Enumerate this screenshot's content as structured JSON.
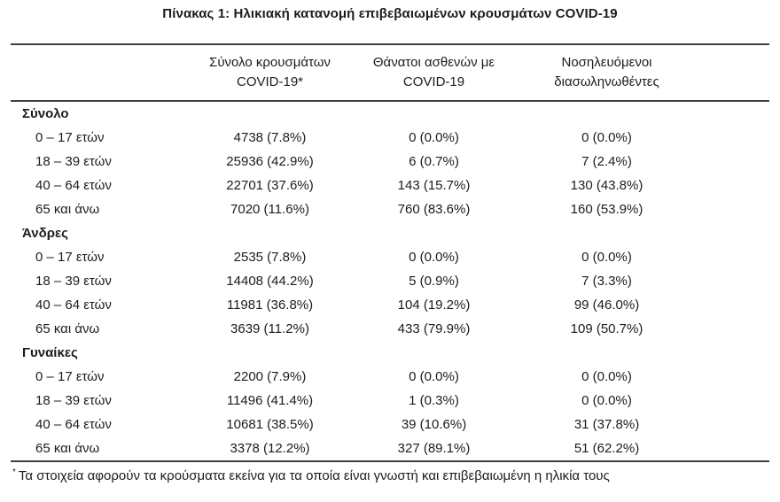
{
  "title": "Πίνακας 1: Ηλικιακή κατανομή επιβεβαιωμένων κρουσμάτων COVID-19",
  "table": {
    "columns": {
      "cases": {
        "line1": "Σύνολο κρουσμάτων",
        "line2": "COVID-19*"
      },
      "deaths": {
        "line1": "Θάνατοι ασθενών με",
        "line2": "COVID-19"
      },
      "intubated": {
        "line1": "Νοσηλευόμενοι",
        "line2": "διασωληνωθέντες"
      }
    },
    "groups": [
      {
        "label": "Σύνολο",
        "rows": [
          {
            "age": "0 – 17 ετών",
            "cases": "4738 (7.8%)",
            "deaths": "0 (0.0%)",
            "intubated": "0 (0.0%)"
          },
          {
            "age": "18 – 39 ετών",
            "cases": "25936 (42.9%)",
            "deaths": "6 (0.7%)",
            "intubated": "7 (2.4%)"
          },
          {
            "age": "40 – 64 ετών",
            "cases": "22701 (37.6%)",
            "deaths": "143 (15.7%)",
            "intubated": "130 (43.8%)"
          },
          {
            "age": "65 και άνω",
            "cases": "7020 (11.6%)",
            "deaths": "760 (83.6%)",
            "intubated": "160 (53.9%)"
          }
        ]
      },
      {
        "label": "Άνδρες",
        "rows": [
          {
            "age": "0 – 17 ετών",
            "cases": "2535 (7.8%)",
            "deaths": "0 (0.0%)",
            "intubated": "0 (0.0%)"
          },
          {
            "age": "18 – 39 ετών",
            "cases": "14408 (44.2%)",
            "deaths": "5 (0.9%)",
            "intubated": "7 (3.3%)"
          },
          {
            "age": "40 – 64 ετών",
            "cases": "11981 (36.8%)",
            "deaths": "104 (19.2%)",
            "intubated": "99 (46.0%)"
          },
          {
            "age": "65 και άνω",
            "cases": "3639 (11.2%)",
            "deaths": "433 (79.9%)",
            "intubated": "109 (50.7%)"
          }
        ]
      },
      {
        "label": "Γυναίκες",
        "rows": [
          {
            "age": "0 – 17 ετών",
            "cases": "2200 (7.9%)",
            "deaths": "0 (0.0%)",
            "intubated": "0 (0.0%)"
          },
          {
            "age": "18 – 39 ετών",
            "cases": "11496 (41.4%)",
            "deaths": "1 (0.3%)",
            "intubated": "0 (0.0%)"
          },
          {
            "age": "40 – 64 ετών",
            "cases": "10681 (38.5%)",
            "deaths": "39 (10.6%)",
            "intubated": "31 (37.8%)"
          },
          {
            "age": "65 και άνω",
            "cases": "3378 (12.2%)",
            "deaths": "327 (89.1%)",
            "intubated": "51 (62.2%)"
          }
        ]
      }
    ],
    "footnote": {
      "marker": "*",
      "text": "Τα στοιχεία αφορούν τα κρούσματα εκείνα για τα οποία είναι γνωστή και επιβεβαιωμένη η ηλικία τους"
    }
  },
  "colors": {
    "text": "#1c1c1c",
    "rule": "#3f3f3f",
    "background": "#ffffff"
  }
}
